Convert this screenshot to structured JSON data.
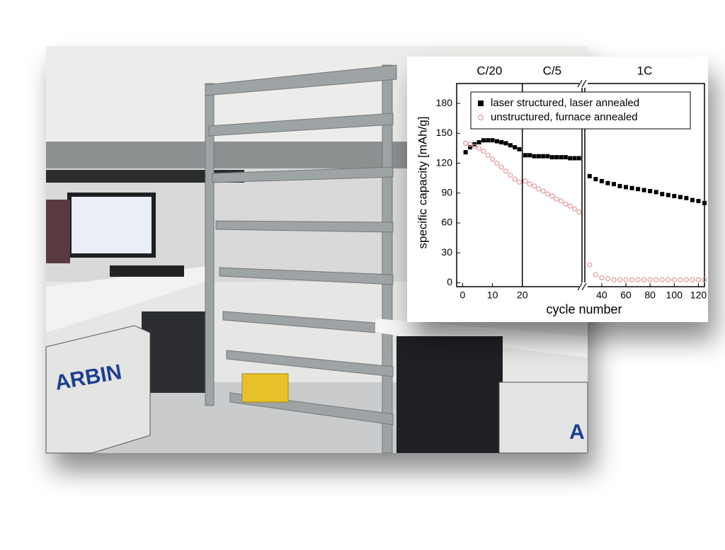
{
  "photo_text": [
    "ARBIN",
    "A"
  ],
  "chart_data": [
    {
      "type": "scatter",
      "y_label": "specific capacity [mAh/g]",
      "sections": [
        "C/20",
        "C/5"
      ],
      "dividers": [
        20
      ],
      "xlim": [
        -2,
        40
      ],
      "xticks": [
        0,
        10,
        20
      ],
      "ylim": [
        -4,
        200
      ],
      "yticks": [
        0,
        30,
        60,
        90,
        120,
        150,
        180
      ],
      "series": [
        {
          "color": "#000000",
          "marker": "square",
          "x": [
            1,
            2.5,
            4,
            5.5,
            7,
            8.5,
            10,
            11.5,
            13,
            14.5,
            16,
            17.5,
            19,
            21,
            22.5,
            24,
            25.5,
            27,
            28.5,
            30,
            31.5,
            33,
            34.5,
            36,
            37.5,
            39
          ],
          "values": [
            131,
            136,
            139,
            141,
            143,
            143,
            143,
            142,
            141,
            140,
            138,
            136,
            134,
            128,
            128,
            127,
            127,
            127,
            127,
            126,
            126,
            126,
            126,
            125,
            125,
            125
          ]
        },
        {
          "color": "#e39a9a",
          "marker": "circle",
          "x": [
            1,
            2.5,
            4,
            5.5,
            7,
            8.5,
            10,
            11.5,
            13,
            14.5,
            16,
            17.5,
            19,
            21,
            22.5,
            24,
            25.5,
            27,
            28.5,
            30,
            31.5,
            33,
            34.5,
            36,
            37.5,
            39
          ],
          "values": [
            140,
            139,
            137,
            135,
            132,
            128,
            124,
            120,
            116,
            112,
            108,
            104,
            101,
            102,
            99,
            97,
            94,
            92,
            89,
            87,
            84,
            82,
            79,
            77,
            74,
            71
          ]
        }
      ]
    },
    {
      "type": "scatter",
      "x_label": "cycle number",
      "sections": [
        "1C"
      ],
      "dividers": [],
      "xlim": [
        26,
        125
      ],
      "xticks": [
        40,
        60,
        80,
        100,
        120
      ],
      "ylim": [
        -4,
        200
      ],
      "legend": "top-right",
      "series": [
        {
          "name": "laser structured, laser annealed",
          "color": "#000000",
          "marker": "square",
          "x": [
            30,
            35,
            40,
            45,
            50,
            55,
            60,
            65,
            70,
            75,
            80,
            85,
            90,
            95,
            100,
            105,
            110,
            115,
            120,
            125
          ],
          "values": [
            107,
            104,
            102,
            100,
            99,
            97,
            96,
            95,
            94,
            93,
            92,
            91,
            89,
            88,
            87,
            86,
            85,
            83,
            82,
            80
          ]
        },
        {
          "name": "unstructured, furnace annealed",
          "color": "#e39a9a",
          "marker": "circle",
          "x": [
            30,
            35,
            40,
            45,
            50,
            55,
            60,
            65,
            70,
            75,
            80,
            85,
            90,
            95,
            100,
            105,
            110,
            115,
            120,
            125
          ],
          "values": [
            18,
            8,
            5,
            4,
            3,
            3,
            3,
            3,
            3,
            3,
            3,
            3,
            3,
            3,
            3,
            3,
            3,
            3,
            3,
            3
          ]
        }
      ]
    }
  ]
}
